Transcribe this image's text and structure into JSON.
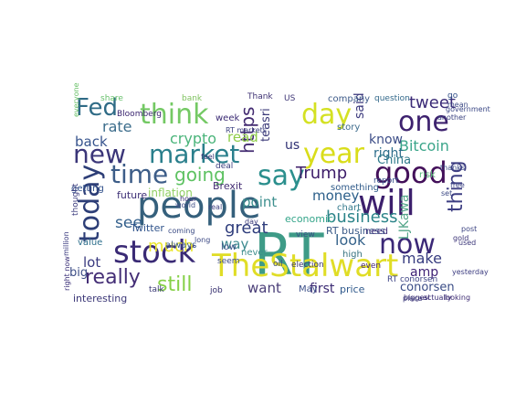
{
  "words": [
    {
      "text": "RT",
      "color": "#3e9b87"
    },
    {
      "text": "people",
      "color": "#35607c"
    },
    {
      "text": "TheStalwart",
      "color": "#e0dd26"
    },
    {
      "text": "stock",
      "color": "#3a2a75"
    },
    {
      "text": "will",
      "color": "#3c1f6c"
    },
    {
      "text": "market",
      "color": "#2a7f8c"
    },
    {
      "text": "think",
      "color": "#74c964"
    },
    {
      "text": "good",
      "color": "#43105a"
    },
    {
      "text": "new",
      "color": "#3b3679"
    },
    {
      "text": "day",
      "color": "#d4e123"
    },
    {
      "text": "one",
      "color": "#3d216e"
    },
    {
      "text": "year",
      "color": "#d9dd1a"
    },
    {
      "text": "say",
      "color": "#2b8f8d"
    },
    {
      "text": "today",
      "color": "#2d3e77"
    },
    {
      "text": "now",
      "color": "#3b2877"
    },
    {
      "text": "time",
      "color": "#3d5d88"
    },
    {
      "text": "Fed",
      "color": "#2f6b86"
    },
    {
      "text": "really",
      "color": "#442e76"
    },
    {
      "text": "going",
      "color": "#5ec262"
    },
    {
      "text": "Trump",
      "color": "#3d1d69"
    },
    {
      "text": "https",
      "color": "#432b71"
    },
    {
      "text": "thing",
      "color": "#3d3e82"
    },
    {
      "text": "tweet",
      "color": "#3b2b77"
    },
    {
      "text": "business",
      "color": "#2c8489"
    },
    {
      "text": "Bitcoin",
      "color": "#3ba58a"
    },
    {
      "text": "much",
      "color": "#ebe62c"
    },
    {
      "text": "still",
      "color": "#86d048"
    },
    {
      "text": "great",
      "color": "#2f3d7c"
    },
    {
      "text": "see",
      "color": "#325f8b"
    },
    {
      "text": "make",
      "color": "#373c80"
    },
    {
      "text": "look",
      "color": "#35628a"
    },
    {
      "text": "point",
      "color": "#3d8f8e"
    },
    {
      "text": "money",
      "color": "#2c5f8a"
    },
    {
      "text": "rate",
      "color": "#3b6c8b"
    },
    {
      "text": "crypto",
      "color": "#4ab47a"
    },
    {
      "text": "back",
      "color": "#37548d"
    },
    {
      "text": "read",
      "color": "#8fcd4a"
    },
    {
      "text": "lot",
      "color": "#3a3b80"
    },
    {
      "text": "want",
      "color": "#493d77"
    },
    {
      "text": "way",
      "color": "#3d8a8f"
    },
    {
      "text": "know",
      "color": "#3c4d87"
    },
    {
      "text": "said",
      "color": "#3c3a7d"
    },
    {
      "text": "right",
      "color": "#2d6d8b"
    },
    {
      "text": "big",
      "color": "#3c4d86"
    },
    {
      "text": "amp",
      "color": "#3f2276"
    },
    {
      "text": "first",
      "color": "#3b2a73"
    },
    {
      "text": "us",
      "color": "#2e2f73"
    },
    {
      "text": "China",
      "color": "#2f7a8b"
    },
    {
      "text": "conorsen",
      "color": "#3a4c86"
    },
    {
      "text": "LJKawa",
      "color": "#55a68a"
    },
    {
      "text": "economic",
      "color": "#35a58a"
    },
    {
      "text": "teasri",
      "color": "#3d3b7a"
    },
    {
      "text": "RT business",
      "color": "#3b5b88"
    },
    {
      "text": "something",
      "color": "#2f5a89"
    },
    {
      "text": "chart",
      "color": "#357a8c"
    },
    {
      "text": "risk",
      "color": "#5ab77a"
    },
    {
      "text": "price",
      "color": "#2f598b"
    },
    {
      "text": "May",
      "color": "#3a4f88"
    },
    {
      "text": "story",
      "color": "#3d6b8c"
    },
    {
      "text": "inflation",
      "color": "#8fcf62"
    },
    {
      "text": "future",
      "color": "#3d2f76"
    },
    {
      "text": "getting",
      "color": "#2e4e89"
    },
    {
      "text": "interesting",
      "color": "#3b3777"
    },
    {
      "text": "Brexit",
      "color": "#442d73"
    },
    {
      "text": "Twitter",
      "color": "#2e528a"
    },
    {
      "text": "always",
      "color": "#3b5a8b"
    },
    {
      "text": "never",
      "color": "#3f8e8c"
    },
    {
      "text": "low",
      "color": "#3b4f86"
    },
    {
      "text": "job",
      "color": "#352e6e"
    },
    {
      "text": "talk",
      "color": "#3a3976"
    },
    {
      "text": "value",
      "color": "#2d6f8c"
    },
    {
      "text": "week",
      "color": "#3b2b74"
    },
    {
      "text": "Bloomberg",
      "color": "#3b2670"
    },
    {
      "text": "company",
      "color": "#3e5b89"
    },
    {
      "text": "question",
      "color": "#33698b"
    },
    {
      "text": "thought",
      "color": "#3b3b7e"
    },
    {
      "text": "seem",
      "color": "#3c4a85"
    },
    {
      "text": "even",
      "color": "#442573"
    },
    {
      "text": "high",
      "color": "#35717f"
    },
    {
      "text": "view",
      "color": "#394f87"
    },
    {
      "text": "need",
      "color": "#3c2b78"
    },
    {
      "text": "Thank",
      "color": "#3e3273"
    },
    {
      "text": "go",
      "color": "#2e4c86"
    },
    {
      "text": "deal",
      "color": "#3a3e7e"
    },
    {
      "text": "report",
      "color": "#37518b"
    },
    {
      "text": "election",
      "color": "#3b3572"
    },
    {
      "text": "government",
      "color": "#3a4785"
    },
    {
      "text": "share",
      "color": "#67c06c"
    },
    {
      "text": "bank",
      "color": "#7fc25f"
    },
    {
      "text": "RT conorsen",
      "color": "#3c4384"
    },
    {
      "text": "biggest",
      "color": "#3b2f75"
    },
    {
      "text": "looking",
      "color": "#3d2b73"
    },
    {
      "text": "actually",
      "color": "#3b2f75"
    },
    {
      "text": "mean",
      "color": "#3f4d87"
    },
    {
      "text": "another",
      "color": "#3b4481"
    },
    {
      "text": "yesterday",
      "color": "#3a3a7f"
    },
    {
      "text": "everyone",
      "color": "#67c065"
    },
    {
      "text": "million",
      "color": "#3a3a7f"
    },
    {
      "text": "right now",
      "color": "#3b3078"
    },
    {
      "text": "coming",
      "color": "#3a4a83"
    },
    {
      "text": "post",
      "color": "#3d4583"
    },
    {
      "text": "hour",
      "color": "#3b3177"
    },
    {
      "text": "world",
      "color": "#3d4d86"
    },
    {
      "text": "place",
      "color": "#3c3a7b"
    },
    {
      "text": "long",
      "color": "#3b4883"
    },
    {
      "text": "gold",
      "color": "#3b3377"
    },
    {
      "text": "RT markets",
      "color": "#3d4282"
    },
    {
      "text": "feel",
      "color": "#3b3375"
    },
    {
      "text": "thanks",
      "color": "#3a4a86"
    },
    {
      "text": "real",
      "color": "#3d3f80"
    },
    {
      "text": "used",
      "color": "#3b3679"
    },
    {
      "text": "free",
      "color": "#3c4484"
    },
    {
      "text": "set",
      "color": "#3a4783"
    },
    {
      "text": "US",
      "color": "#3e3676"
    },
    {
      "text": "day",
      "color": "#3c3c7b"
    },
    {
      "text": "oil",
      "color": "#3a4783"
    }
  ]
}
